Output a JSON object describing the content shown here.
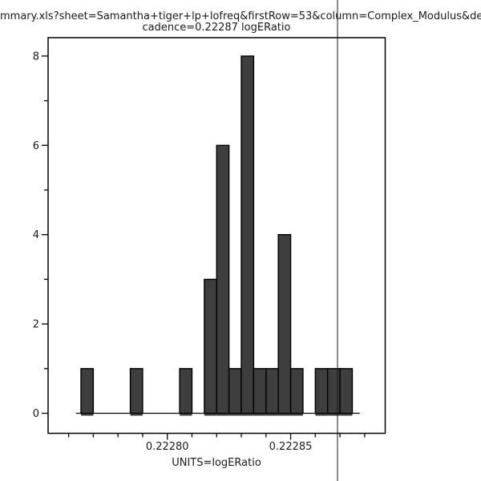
{
  "header": {
    "title_line1": "mmary.xls?sheet=Samantha+tiger+lp+lofreq&firstRow=53&column=Complex_Modulus&depende",
    "title_line2": "cadence=0.22287 logERatio"
  },
  "chart_data": {
    "type": "bar",
    "subtype": "histogram",
    "title": "cadence=0.22287 logERatio",
    "xlabel": "UNITS=logERatio",
    "ylabel": "",
    "bin_start": 0.222765,
    "bin_width": 5e-06,
    "counts": [
      1,
      0,
      0,
      0,
      1,
      0,
      0,
      0,
      1,
      0,
      3,
      6,
      1,
      8,
      1,
      1,
      4,
      1,
      0,
      1,
      1,
      1
    ],
    "total_count": 31,
    "baseline_range": [
      0.222763,
      0.222878
    ],
    "x_tick_range": [
      0.22276,
      0.22288
    ],
    "x_tick_step": 1e-05,
    "x_tick_labels": [
      {
        "value": 0.2228,
        "label": "0.22280"
      },
      {
        "value": 0.22285,
        "label": "0.22285"
      }
    ],
    "y_major_ticks": [
      0,
      2,
      4,
      6,
      8
    ],
    "y_minor_ticks": [
      1,
      3,
      5,
      7
    ],
    "ylim": [
      0,
      8.4
    ],
    "grid": false,
    "legend_position": "none",
    "marker_line": {
      "value": 0.222869,
      "title_display": "0.22287"
    },
    "colors": {
      "bar_fill": "#3e3e3e",
      "outline": "#000000",
      "marker": "#1a1a1a",
      "background": "#ffffff",
      "text": "#1a1a1a"
    }
  }
}
